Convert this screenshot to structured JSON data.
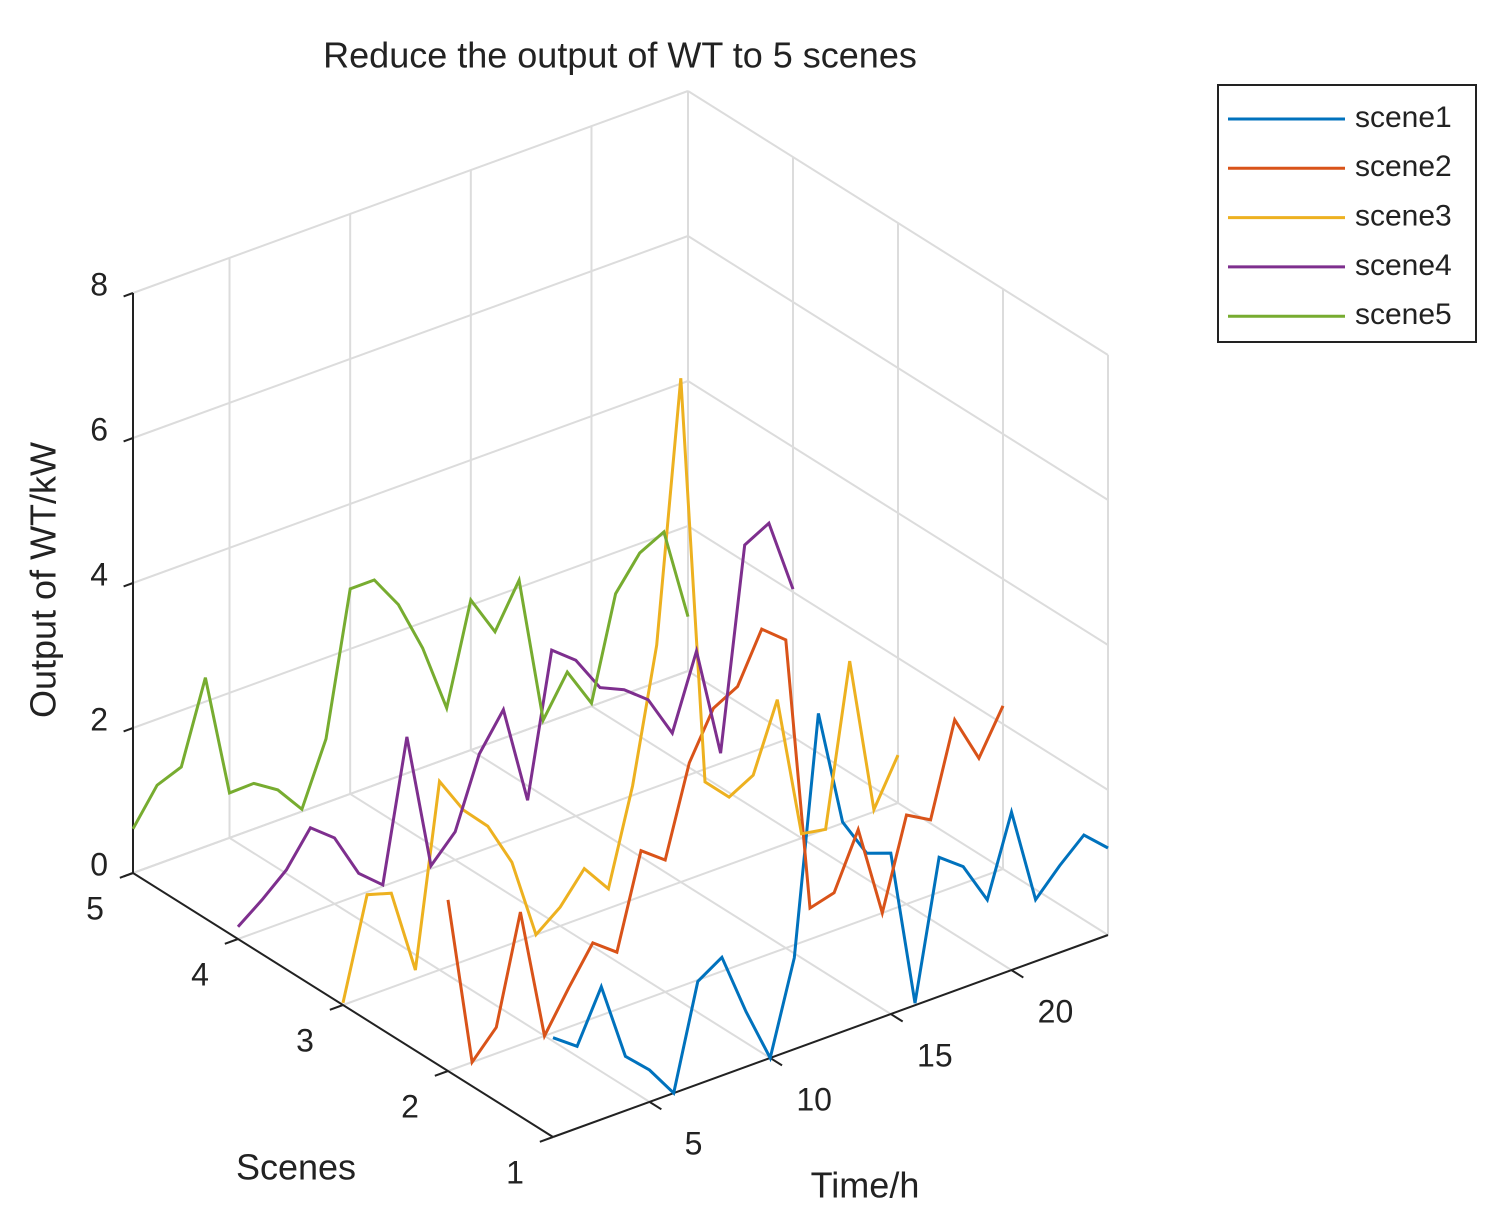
{
  "chart_data": {
    "type": "line3d",
    "title": "Reduce the output of WT to 5 scenes",
    "xlabel": "Time/h",
    "ylabel": "Scenes",
    "zlabel": "Output of WT/kW",
    "x": [
      1,
      2,
      3,
      4,
      5,
      6,
      7,
      8,
      9,
      10,
      11,
      12,
      13,
      14,
      15,
      16,
      17,
      18,
      19,
      20,
      21,
      22,
      23,
      24
    ],
    "xlim": [
      1,
      24
    ],
    "xticks": [
      5,
      10,
      15,
      20
    ],
    "ylim": [
      1,
      5
    ],
    "yticks": [
      1,
      2,
      3,
      4,
      5
    ],
    "zlim": [
      0,
      8
    ],
    "zticks": [
      0,
      2,
      4,
      6,
      8
    ],
    "grid": true,
    "legend": "outside-top-right",
    "series": [
      {
        "name": "scene1",
        "color": "#0072BD",
        "y": 1,
        "values": [
          1.37,
          1.13,
          1.83,
          0.75,
          0.44,
          0,
          1.42,
          1.63,
          0.76,
          0,
          1.26,
          4.51,
          2.89,
          2.34,
          2.22,
          0.03,
          1.92,
          1.67,
          1.09,
          2.18,
          0.85,
          1.2,
          1.5,
          1.2
        ]
      },
      {
        "name": "scene2",
        "color": "#D95319",
        "y": 2,
        "values": [
          2.36,
          0,
          0.36,
          1.83,
          0,
          0.54,
          1.04,
          0.79,
          2.07,
          1.82,
          3.04,
          3.67,
          3.85,
          4.52,
          4.25,
          0.43,
          0.52,
          1.27,
          0,
          1.23,
          1.04,
          2.3,
          1.65,
          2.25
        ]
      },
      {
        "name": "scene3",
        "color": "#EDB120",
        "y": 3,
        "values": [
          0.03,
          1.4,
          1.3,
          0.12,
          2.6,
          2.08,
          1.74,
          1.12,
          0,
          0.26,
          0.67,
          0.27,
          1.57,
          3.39,
          6.95,
          1.26,
          0.93,
          1.11,
          2.03,
          0.06,
          0,
          2.2,
          0.03,
          0.66
        ]
      },
      {
        "name": "scene4",
        "color": "#7E2F8E",
        "y": 4,
        "values": [
          0.17,
          0.42,
          0.71,
          1.17,
          0.91,
          0.3,
          0.02,
          1.94,
          0.04,
          0.39,
          1.34,
          1.83,
          0.46,
          2.41,
          2.15,
          1.65,
          1.5,
          1.24,
          0.66,
          1.67,
          0.14,
          2.89,
          3.07,
          2.04
        ]
      },
      {
        "name": "scene5",
        "color": "#77AC30",
        "y": 5,
        "values": [
          0.61,
          1.09,
          1.22,
          2.33,
          0.62,
          0.63,
          0.42,
          0.03,
          0.88,
          2.83,
          2.83,
          2.37,
          1.65,
          0.7,
          2.07,
          1.51,
          2.1,
          0.05,
          0.59,
          0.04,
          1.43,
          1.87,
          2.04,
          0.75
        ]
      }
    ]
  }
}
